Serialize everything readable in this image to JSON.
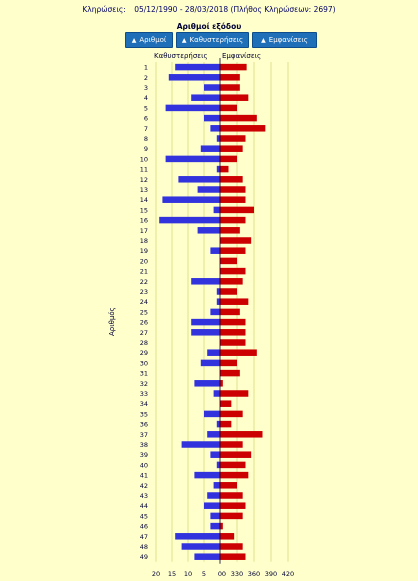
{
  "header": {
    "label": "Κληρώσεις:",
    "range": "05/12/1990 - 28/03/2018 (Πλήθος Κληρώσεων: 2697)"
  },
  "sort_title": "Αριθμοί εξόδου",
  "buttons": [
    {
      "label": "Αριθμοί",
      "icon": "up-arrow-icon"
    },
    {
      "label": "Καθυστερήσεις",
      "icon": "up-arrow-icon"
    },
    {
      "label": "Εμφανίσεις",
      "icon": "up-arrow-icon"
    }
  ],
  "colors": {
    "delays": "#3333dd",
    "appearances": "#cc0000",
    "gridline": "#cccc66",
    "background": "#ffffcc"
  },
  "chart_data": {
    "type": "bar",
    "ylabel": "Αριθμός",
    "categories": [
      "1",
      "2",
      "3",
      "4",
      "5",
      "6",
      "7",
      "8",
      "9",
      "10",
      "11",
      "12",
      "13",
      "14",
      "15",
      "16",
      "17",
      "18",
      "19",
      "20",
      "21",
      "22",
      "23",
      "24",
      "25",
      "26",
      "27",
      "28",
      "29",
      "30",
      "31",
      "32",
      "33",
      "34",
      "35",
      "36",
      "37",
      "38",
      "39",
      "40",
      "41",
      "42",
      "43",
      "44",
      "45",
      "46",
      "47",
      "48",
      "49"
    ],
    "series": [
      {
        "name": "Καθυστερήσεις",
        "xticks": [
          20,
          15,
          10,
          5,
          0
        ],
        "values": [
          14,
          16,
          5,
          9,
          17,
          5,
          3,
          1,
          6,
          17,
          1,
          13,
          7,
          18,
          2,
          19,
          7,
          0,
          3,
          0,
          0,
          9,
          1,
          1,
          3,
          9,
          9,
          0,
          4,
          6,
          0,
          8,
          2,
          0,
          5,
          1,
          4,
          12,
          3,
          1,
          8,
          2,
          4,
          5,
          3,
          3,
          14,
          12,
          8
        ]
      },
      {
        "name": "Εμφανίσεις",
        "xticks": [
          0,
          330,
          360,
          390,
          420
        ],
        "values": [
          347,
          335,
          335,
          350,
          330,
          365,
          380,
          345,
          340,
          330,
          315,
          340,
          345,
          345,
          360,
          345,
          335,
          355,
          345,
          330,
          345,
          340,
          330,
          350,
          335,
          345,
          345,
          345,
          365,
          330,
          335,
          305,
          350,
          320,
          340,
          320,
          375,
          340,
          355,
          345,
          350,
          330,
          340,
          345,
          340,
          305,
          325,
          340,
          345
        ]
      }
    ]
  }
}
